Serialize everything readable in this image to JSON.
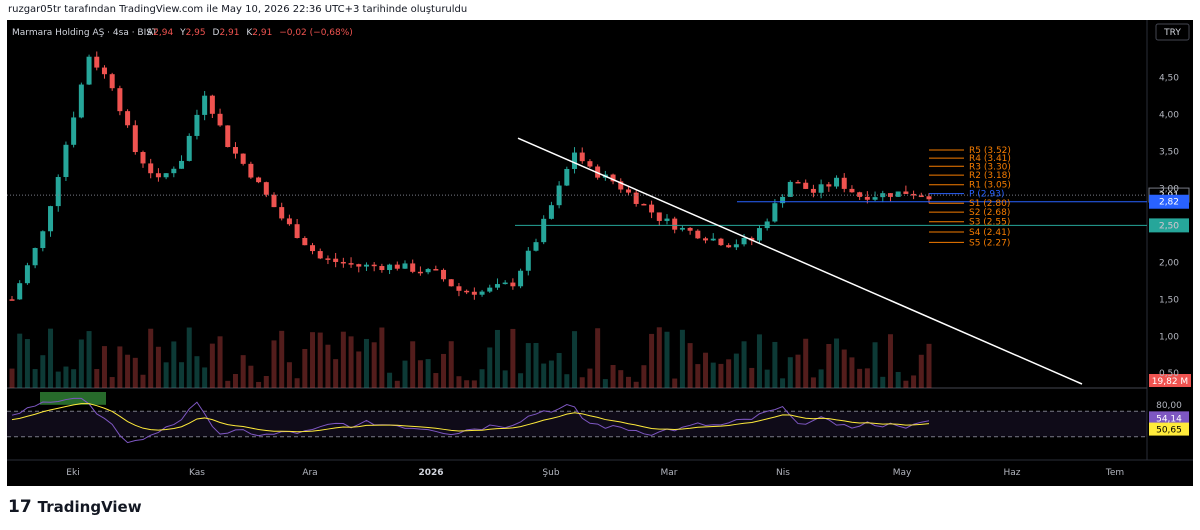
{
  "header": {
    "credit": "ruzgar05tr tarafından TradingView.com ile May 10, 2026 22:36 UTC+3 tarihinde oluşturuldu"
  },
  "legend": {
    "symbol": "Marmara Holding AŞ · 4sa · BIST",
    "o_label": "A",
    "o_value": "2,94",
    "h_label": "Y",
    "h_value": "2,95",
    "l_label": "D",
    "l_value": "2,91",
    "c_label": "K",
    "c_value": "2,91",
    "change": "−0,02 (−0,68%)"
  },
  "currency_button": "TRY",
  "footer": {
    "brand": "TradingView",
    "logo_mark": "17"
  },
  "colors": {
    "up": "#26a69a",
    "down": "#ef5350",
    "pivot_lines": "#f57c00",
    "rsi_line": "#7e57c2",
    "rsi_ma": "#ffeb3b",
    "trendline": "#ffffff",
    "support_line": "#26a69a",
    "resistance_line": "#2962ff"
  },
  "chart_data": {
    "type": "candlestick",
    "y_ticks": [
      "4,50",
      "4,00",
      "3,50",
      "3,00",
      "2,50",
      "2,00",
      "1,50",
      "1,00",
      "0,50"
    ],
    "y_ticks_values": [
      4.5,
      4.0,
      3.5,
      3.0,
      2.5,
      2.0,
      1.5,
      1.0,
      0.5
    ],
    "ylim": [
      0.3,
      4.9
    ],
    "x_ticks": [
      "Eki",
      "Kas",
      "Ara",
      "2026",
      "Şub",
      "Mar",
      "Nis",
      "May",
      "Haz",
      "Tem"
    ],
    "price_path": [
      [
        0,
        1.5
      ],
      [
        4,
        2.4
      ],
      [
        7,
        3.6
      ],
      [
        10,
        4.8
      ],
      [
        13,
        4.4
      ],
      [
        16,
        3.5
      ],
      [
        19,
        3.1
      ],
      [
        22,
        3.4
      ],
      [
        25,
        4.3
      ],
      [
        28,
        3.6
      ],
      [
        31,
        3.2
      ],
      [
        35,
        2.6
      ],
      [
        40,
        2.05
      ],
      [
        45,
        1.95
      ],
      [
        50,
        1.95
      ],
      [
        55,
        1.85
      ],
      [
        58,
        1.62
      ],
      [
        61,
        1.6
      ],
      [
        65,
        1.72
      ],
      [
        68,
        2.3
      ],
      [
        71,
        3.0
      ],
      [
        73,
        3.5
      ],
      [
        75,
        3.25
      ],
      [
        78,
        3.1
      ],
      [
        81,
        2.85
      ],
      [
        84,
        2.6
      ],
      [
        87,
        2.45
      ],
      [
        90,
        2.35
      ],
      [
        93,
        2.25
      ],
      [
        96,
        2.3
      ],
      [
        98,
        2.6
      ],
      [
        101,
        3.1
      ],
      [
        104,
        2.95
      ],
      [
        107,
        3.1
      ],
      [
        110,
        2.9
      ],
      [
        113,
        2.92
      ],
      [
        116,
        2.95
      ],
      [
        119,
        2.91
      ]
    ],
    "current_price": {
      "value": 2.91,
      "label": "2,91"
    },
    "horizontal_levels": [
      {
        "value": 2.82,
        "label": "2,82",
        "color": "#2962ff"
      },
      {
        "value": 2.5,
        "label": "2,50",
        "color": "#26a69a"
      }
    ],
    "volume": {
      "last_label": "19,82 M"
    },
    "trendline": {
      "x1": 2026.14,
      "y1": 3.68,
      "x2": 2026.53,
      "y2": 0.55
    },
    "pivots": [
      {
        "name": "R5",
        "value": 3.52,
        "label": "R5 (3.52)"
      },
      {
        "name": "R4",
        "value": 3.41,
        "label": "R4 (3.41)"
      },
      {
        "name": "R3",
        "value": 3.3,
        "label": "R3 (3.30)"
      },
      {
        "name": "R2",
        "value": 3.18,
        "label": "R2 (3.18)"
      },
      {
        "name": "R1",
        "value": 3.05,
        "label": "R1 (3.05)"
      },
      {
        "name": "P",
        "value": 2.93,
        "label": "P (2.93)"
      },
      {
        "name": "S1",
        "value": 2.8,
        "label": "S1 (2.80)"
      },
      {
        "name": "S2",
        "value": 2.68,
        "label": "S2 (2.68)"
      },
      {
        "name": "S3",
        "value": 2.55,
        "label": "S3 (2.55)"
      },
      {
        "name": "S4",
        "value": 2.41,
        "label": "S4 (2.41)"
      },
      {
        "name": "S5",
        "value": 2.27,
        "label": "S5 (2.27)"
      }
    ],
    "rsi": {
      "tick": "80,00",
      "rsi_value": 54.14,
      "rsi_label": "54,14",
      "ma_value": 50.65,
      "ma_label": "50,65",
      "upper_band": 70,
      "lower_band": 30
    }
  }
}
